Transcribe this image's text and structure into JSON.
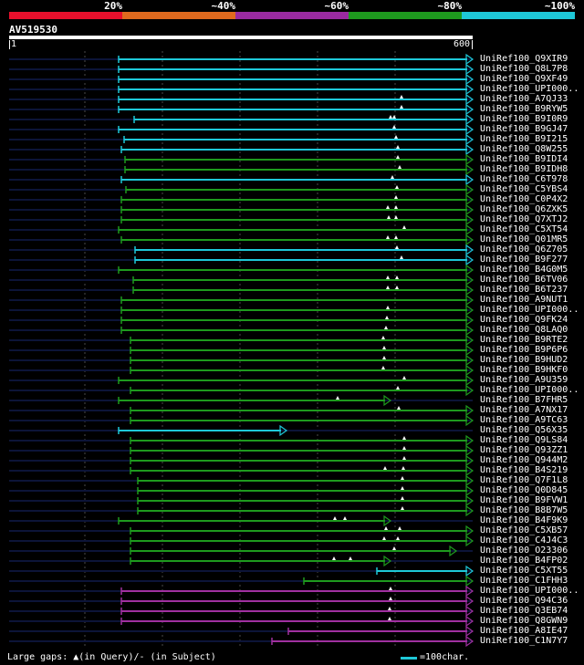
{
  "identity_legend": [
    {
      "label": "20%",
      "color": "#e8102c"
    },
    {
      "label": "~40%",
      "color": "#e06a1e"
    },
    {
      "label": "~60%",
      "color": "#9a2aa0"
    },
    {
      "label": "~80%",
      "color": "#1e9a1e"
    },
    {
      "label": "~100%",
      "color": "#1ec8d8"
    }
  ],
  "query": {
    "name": "AV519530",
    "start": "1",
    "end": "600"
  },
  "colors": {
    "query_track": "#0c1438",
    "cyan": "#1ec8d8",
    "green": "#1e9a1e",
    "magenta": "#a030a0",
    "grid": "#4a4a4a"
  },
  "hits": [
    {
      "name": "UniRef100_Q9XIR9",
      "color": "cyan"
    },
    {
      "name": "UniRef100_Q8L7P8",
      "color": "cyan"
    },
    {
      "name": "UniRef100_Q9XF49",
      "color": "cyan"
    },
    {
      "name": "UniRef100_UPI000..",
      "color": "cyan"
    },
    {
      "name": "UniRef100_A7QJ33",
      "color": "cyan"
    },
    {
      "name": "UniRef100_B9RYW5",
      "color": "cyan"
    },
    {
      "name": "UniRef100_B9I0R9",
      "color": "cyan"
    },
    {
      "name": "UniRef100_B9GJ47",
      "color": "cyan"
    },
    {
      "name": "UniRef100_B9I215",
      "color": "cyan"
    },
    {
      "name": "UniRef100_Q8W255",
      "color": "cyan"
    },
    {
      "name": "UniRef100_B9IDI4",
      "color": "green"
    },
    {
      "name": "UniRef100_B9IDH8",
      "color": "green"
    },
    {
      "name": "UniRef100_C6T978",
      "color": "cyan"
    },
    {
      "name": "UniRef100_C5YBS4",
      "color": "green"
    },
    {
      "name": "UniRef100_C0P4X2",
      "color": "green"
    },
    {
      "name": "UniRef100_Q6ZXK5",
      "color": "green"
    },
    {
      "name": "UniRef100_Q7XTJ2",
      "color": "green"
    },
    {
      "name": "UniRef100_C5XT54",
      "color": "green"
    },
    {
      "name": "UniRef100_Q01MR5",
      "color": "green"
    },
    {
      "name": "UniRef100_Q6Z705",
      "color": "cyan"
    },
    {
      "name": "UniRef100_B9F277",
      "color": "cyan"
    },
    {
      "name": "UniRef100_B4G0M5",
      "color": "green"
    },
    {
      "name": "UniRef100_B6TV06",
      "color": "green"
    },
    {
      "name": "UniRef100_B6T237",
      "color": "green"
    },
    {
      "name": "UniRef100_A9NUT1",
      "color": "green"
    },
    {
      "name": "UniRef100_UPI000..",
      "color": "green"
    },
    {
      "name": "UniRef100_Q9FK24",
      "color": "green"
    },
    {
      "name": "UniRef100_Q8LAQ0",
      "color": "green"
    },
    {
      "name": "UniRef100_B9RTE2",
      "color": "green"
    },
    {
      "name": "UniRef100_B9P6P6",
      "color": "green"
    },
    {
      "name": "UniRef100_B9HUD2",
      "color": "green"
    },
    {
      "name": "UniRef100_B9HKF0",
      "color": "green"
    },
    {
      "name": "UniRef100_A9U359",
      "color": "green"
    },
    {
      "name": "UniRef100_UPI000..",
      "color": "green"
    },
    {
      "name": "UniRef100_B7FHR5",
      "color": "green"
    },
    {
      "name": "UniRef100_A7NX17",
      "color": "green"
    },
    {
      "name": "UniRef100_A9TC63",
      "color": "green"
    },
    {
      "name": "UniRef100_Q56X35",
      "color": "cyan"
    },
    {
      "name": "UniRef100_Q9LS84",
      "color": "green"
    },
    {
      "name": "UniRef100_Q93ZZ1",
      "color": "green"
    },
    {
      "name": "UniRef100_Q944M2",
      "color": "green"
    },
    {
      "name": "UniRef100_B4S219",
      "color": "green"
    },
    {
      "name": "UniRef100_Q7F1L8",
      "color": "green"
    },
    {
      "name": "UniRef100_Q0D845",
      "color": "green"
    },
    {
      "name": "UniRef100_B9FVW1",
      "color": "green"
    },
    {
      "name": "UniRef100_B8B7W5",
      "color": "green"
    },
    {
      "name": "UniRef100_B4F9K9",
      "color": "green"
    },
    {
      "name": "UniRef100_C5XB57",
      "color": "green"
    },
    {
      "name": "UniRef100_C4J4C3",
      "color": "green"
    },
    {
      "name": "UniRef100_O23306",
      "color": "green"
    },
    {
      "name": "UniRef100_B4FP02",
      "color": "green"
    },
    {
      "name": "UniRef100_C5XT55",
      "color": "cyan"
    },
    {
      "name": "UniRef100_C1FHH3",
      "color": "green"
    },
    {
      "name": "UniRef100_UPI000..",
      "color": "magenta"
    },
    {
      "name": "UniRef100_Q94C36",
      "color": "magenta"
    },
    {
      "name": "UniRef100_Q3EB74",
      "color": "magenta"
    },
    {
      "name": "UniRef100_Q8GWN9",
      "color": "magenta"
    },
    {
      "name": "UniRef100_A8IE47",
      "color": "magenta"
    },
    {
      "name": "UniRef100_C1N7Y7",
      "color": "magenta"
    }
  ],
  "footer": {
    "gaps_text": "Large gaps: ▲(in Query)/- (in Subject)",
    "scale_text": "=100char."
  }
}
